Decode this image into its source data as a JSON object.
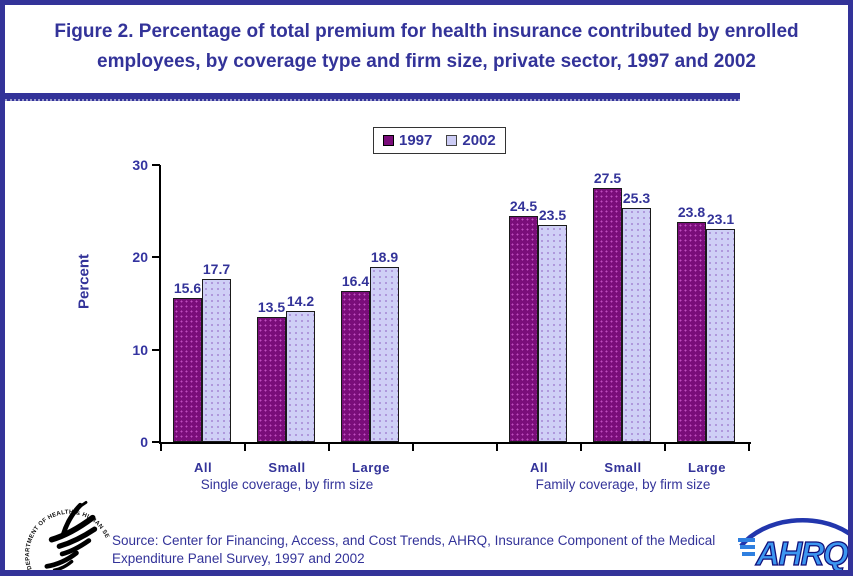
{
  "title": "Figure 2. Percentage of total premium for health insurance contributed by enrolled employees, by coverage type and firm size, private sector, 1997 and 2002",
  "legend": {
    "items": [
      {
        "label": "1997",
        "color": "#7a0d7a"
      },
      {
        "label": "2002",
        "color": "#ccccf5"
      }
    ]
  },
  "chart_data": {
    "type": "bar",
    "title": "Figure 2. Percentage of total premium for health insurance contributed by enrolled employees, by coverage type and firm size, private sector, 1997 and 2002",
    "ylabel": "Percent",
    "xlabel": "",
    "ylim": [
      0,
      30
    ],
    "yticks": [
      0,
      10,
      20,
      30
    ],
    "grid": false,
    "legend_position": "top-center",
    "categories": [
      "All",
      "Small",
      "Large",
      "All",
      "Small",
      "Large"
    ],
    "groups": [
      {
        "label": "Single coverage, by firm size",
        "indices": [
          0,
          1,
          2
        ]
      },
      {
        "label": "Family coverage, by firm size",
        "indices": [
          3,
          4,
          5
        ]
      }
    ],
    "series": [
      {
        "name": "1997",
        "color": "#7a0d7a",
        "values": [
          15.6,
          13.5,
          16.4,
          24.5,
          27.5,
          23.8
        ]
      },
      {
        "name": "2002",
        "color": "#ccccf5",
        "values": [
          17.7,
          14.2,
          18.9,
          23.5,
          25.3,
          23.1
        ]
      }
    ]
  },
  "source": "Source: Center for Financing, Access, and Cost Trends, AHRQ, Insurance Component of the Medical Expenditure Panel Survey, 1997 and 2002",
  "footer": {
    "hhs_arc_text": "DEPARTMENT OF HEALTH & HUMAN SERVICES · USA",
    "ahrq_text": "AHRQ"
  },
  "colors": {
    "accent_navy": "#333399",
    "bar_1997": "#7a0d7a",
    "bar_2002": "#ccccf5",
    "axis_black": "#000000"
  }
}
